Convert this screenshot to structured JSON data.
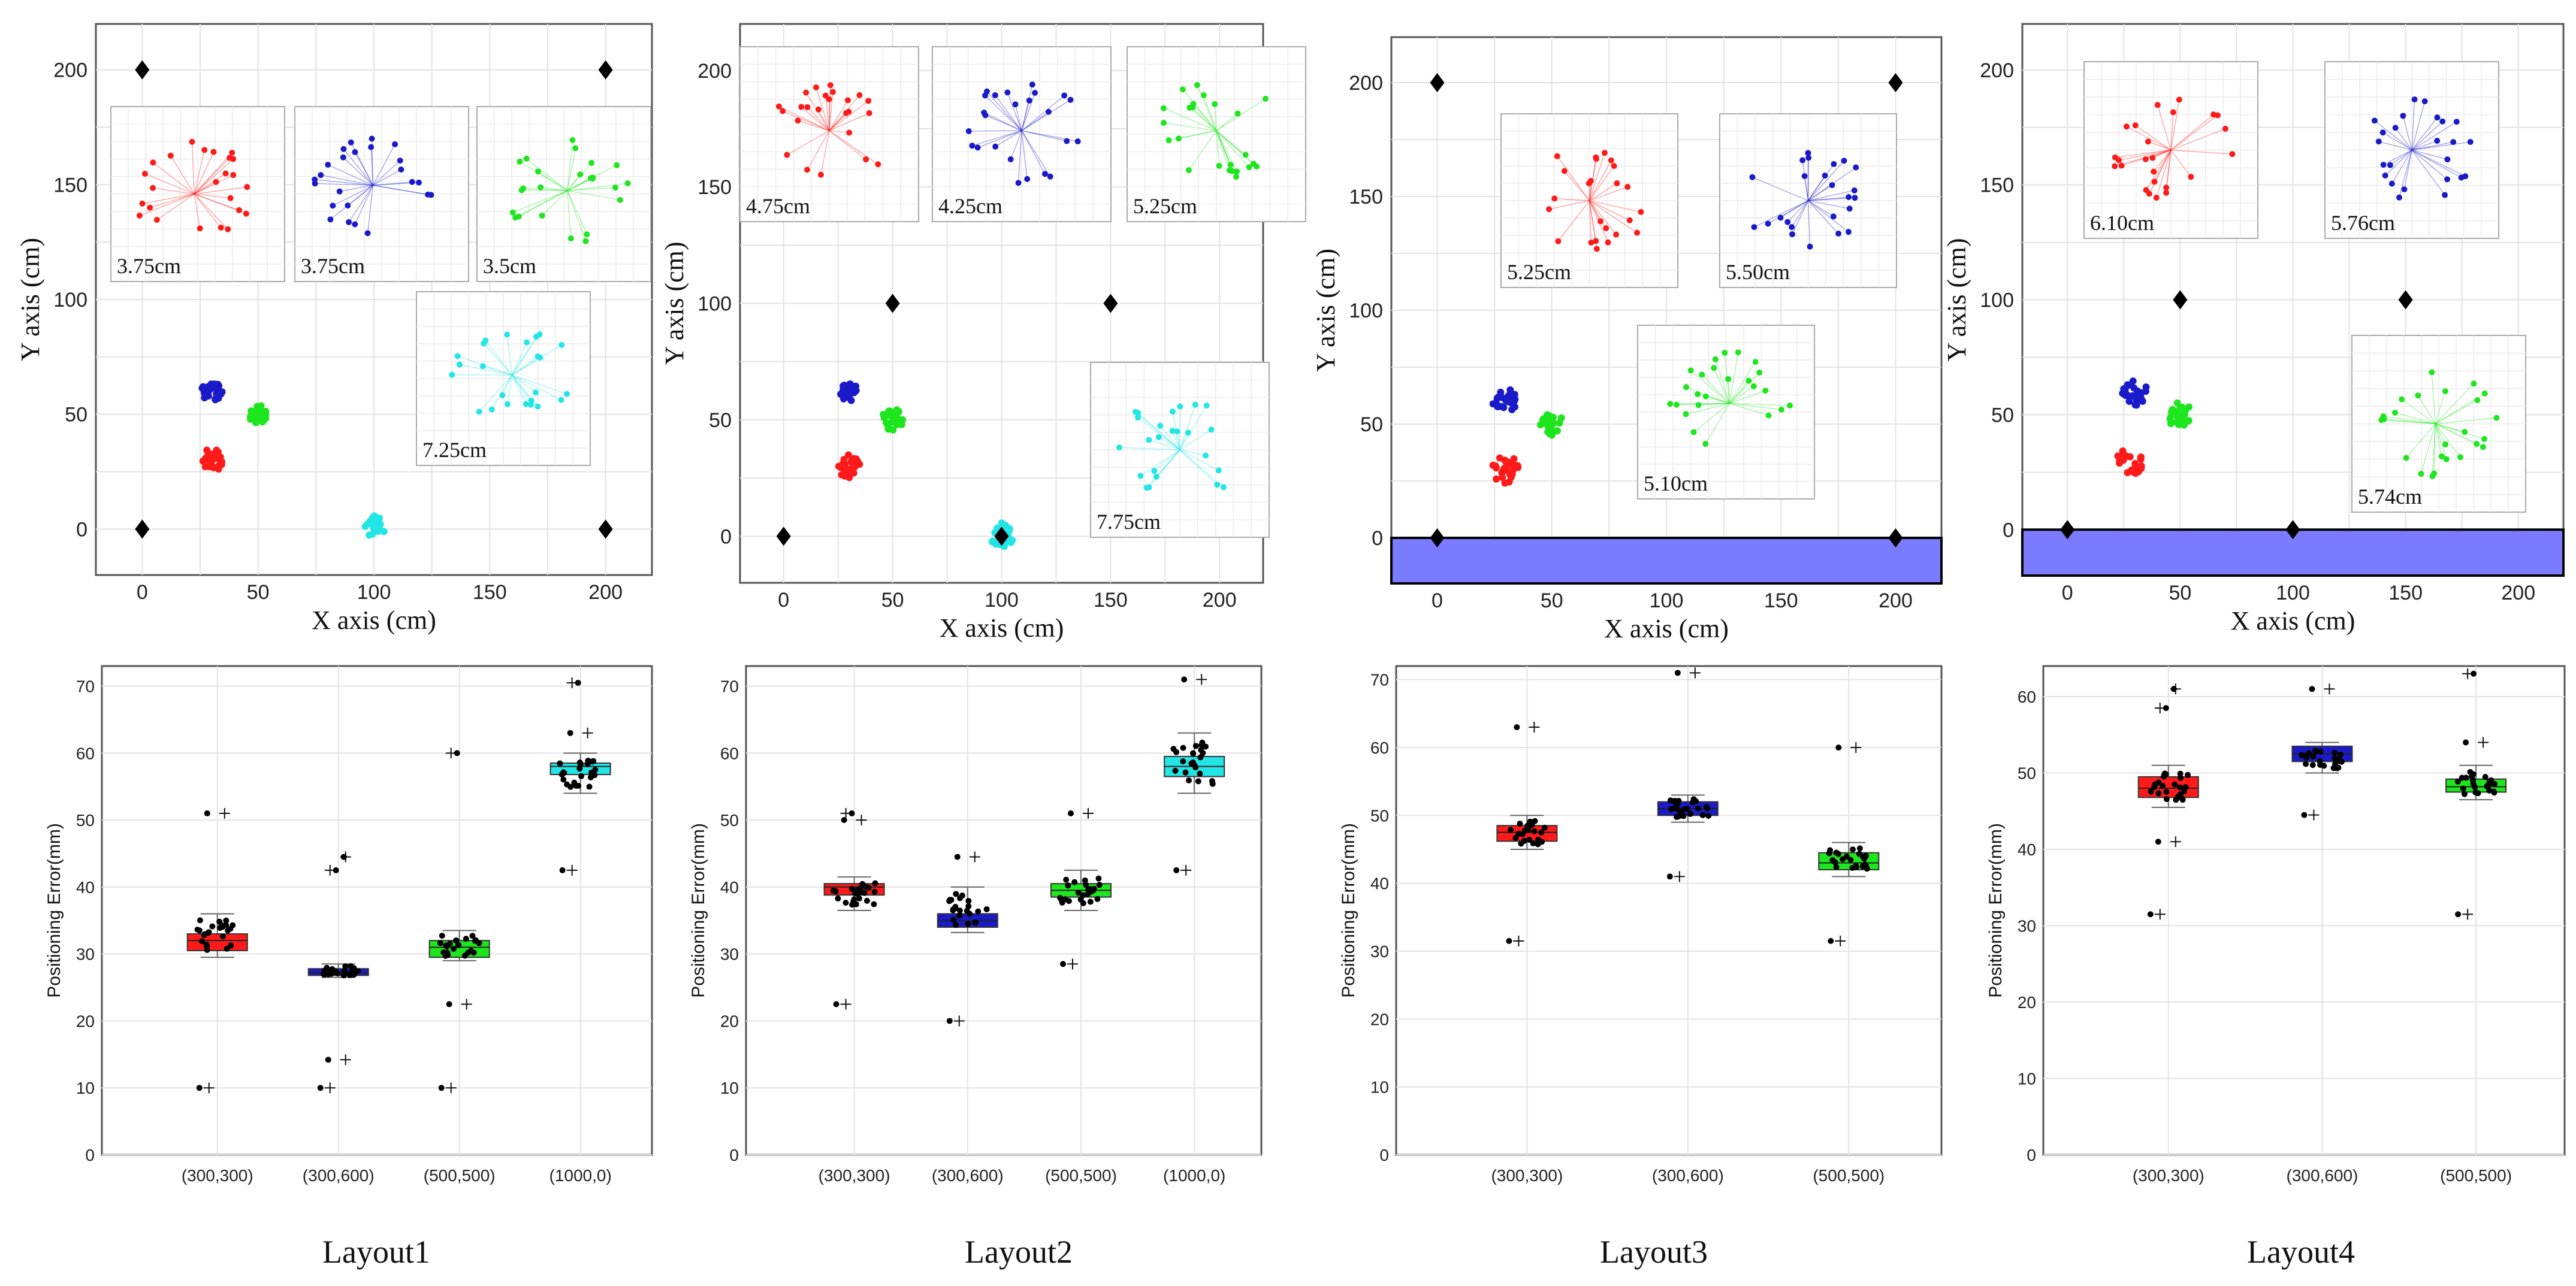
{
  "chart_data": [
    {
      "type": "scatter",
      "title": "Layout1",
      "xlabel": "X axis (cm)",
      "ylabel": "Y axis (cm)",
      "xlim": [
        -20,
        220
      ],
      "ylim": [
        -20,
        220
      ],
      "xticks": [
        "0",
        "50",
        "100",
        "150",
        "200"
      ],
      "yticks": [
        "0",
        "50",
        "100",
        "150",
        "200"
      ],
      "anchors": [
        [
          0,
          0
        ],
        [
          0,
          200
        ],
        [
          200,
          0
        ],
        [
          200,
          200
        ]
      ],
      "clusters": [
        {
          "name": "(300,300)",
          "color": "#ff1a1a",
          "center": [
            30,
            30
          ],
          "spread": 5
        },
        {
          "name": "(300,600)",
          "color": "#1a1ac8",
          "center": [
            30,
            61
          ],
          "spread": 5
        },
        {
          "name": "(500,500)",
          "color": "#1ee61e",
          "center": [
            50,
            50
          ],
          "spread": 4
        },
        {
          "name": "(1000,0)",
          "color": "#22e6e6",
          "center": [
            100,
            1
          ],
          "spread": 5
        }
      ],
      "obstacle": null,
      "insets": [
        {
          "label": "3.75cm",
          "color": "#ff1a1a"
        },
        {
          "label": "3.75cm",
          "color": "#1a1ac8"
        },
        {
          "label": "3.5cm",
          "color": "#1ee61e"
        },
        {
          "label": "7.25cm",
          "color": "#22e6e6"
        }
      ]
    },
    {
      "type": "scatter",
      "title": "Layout2",
      "xlabel": "X axis (cm)",
      "ylabel": "Y axis (cm)",
      "xlim": [
        -20,
        220
      ],
      "ylim": [
        -20,
        220
      ],
      "xticks": [
        "0",
        "50",
        "100",
        "150",
        "200"
      ],
      "yticks": [
        "0",
        "50",
        "100",
        "150",
        "200"
      ],
      "anchors": [
        [
          0,
          0
        ],
        [
          50,
          100
        ],
        [
          100,
          0
        ],
        [
          150,
          100
        ]
      ],
      "clusters": [
        {
          "name": "(300,300)",
          "color": "#ff1a1a",
          "center": [
            30,
            30
          ],
          "spread": 5
        },
        {
          "name": "(300,600)",
          "color": "#1a1ac8",
          "center": [
            30,
            62
          ],
          "spread": 4
        },
        {
          "name": "(500,500)",
          "color": "#1ee61e",
          "center": [
            50,
            50
          ],
          "spread": 5
        },
        {
          "name": "(1000,0)",
          "color": "#22e6e6",
          "center": [
            100,
            1
          ],
          "spread": 6
        }
      ],
      "obstacle": null,
      "insets": [
        {
          "label": "4.75cm",
          "color": "#ff1a1a"
        },
        {
          "label": "4.25cm",
          "color": "#1a1ac8"
        },
        {
          "label": "5.25cm",
          "color": "#1ee61e"
        },
        {
          "label": "7.75cm",
          "color": "#22e6e6"
        }
      ]
    },
    {
      "type": "scatter",
      "title": "Layout3",
      "xlabel": "X axis (cm)",
      "ylabel": "Y axis (cm)",
      "xlim": [
        -20,
        220
      ],
      "ylim": [
        -20,
        220
      ],
      "xticks": [
        "0",
        "50",
        "100",
        "150",
        "200"
      ],
      "yticks": [
        "0",
        "50",
        "100",
        "150",
        "200"
      ],
      "anchors": [
        [
          0,
          0
        ],
        [
          0,
          200
        ],
        [
          200,
          0
        ],
        [
          200,
          200
        ]
      ],
      "clusters": [
        {
          "name": "(300,300)",
          "color": "#ff1a1a",
          "center": [
            30,
            30
          ],
          "spread": 6
        },
        {
          "name": "(300,600)",
          "color": "#1a1ac8",
          "center": [
            30,
            60
          ],
          "spread": 6
        },
        {
          "name": "(500,500)",
          "color": "#1ee61e",
          "center": [
            50,
            50
          ],
          "spread": 5
        }
      ],
      "obstacle": {
        "y0": -20,
        "y1": 0,
        "color": "#7b7bff"
      },
      "insets": [
        {
          "label": "5.25cm",
          "color": "#ff1a1a"
        },
        {
          "label": "5.50cm",
          "color": "#1a1ac8"
        },
        {
          "label": "5.10cm",
          "color": "#1ee61e"
        }
      ]
    },
    {
      "type": "scatter",
      "title": "Layout4",
      "xlabel": "X axis (cm)",
      "ylabel": "Y axis (cm)",
      "xlim": [
        -20,
        220
      ],
      "ylim": [
        -20,
        220
      ],
      "xticks": [
        "0",
        "50",
        "100",
        "150",
        "200"
      ],
      "yticks": [
        "0",
        "50",
        "100",
        "150",
        "200"
      ],
      "anchors": [
        [
          0,
          0
        ],
        [
          50,
          100
        ],
        [
          100,
          0
        ],
        [
          150,
          100
        ]
      ],
      "clusters": [
        {
          "name": "(300,300)",
          "color": "#ff1a1a",
          "center": [
            28,
            30
          ],
          "spread": 6
        },
        {
          "name": "(300,600)",
          "color": "#1a1ac8",
          "center": [
            30,
            60
          ],
          "spread": 6
        },
        {
          "name": "(500,500)",
          "color": "#1ee61e",
          "center": [
            50,
            50
          ],
          "spread": 6
        }
      ],
      "obstacle": {
        "y0": -20,
        "y1": 0,
        "color": "#7b7bff"
      },
      "insets": [
        {
          "label": "6.10cm",
          "color": "#ff1a1a"
        },
        {
          "label": "5.76cm",
          "color": "#1a1ac8"
        },
        {
          "label": "5.74cm",
          "color": "#1ee61e"
        }
      ]
    },
    {
      "type": "box",
      "title": "Layout1",
      "ylabel": "Positioning Error(mm)",
      "ylim": [
        0,
        73
      ],
      "yticks": [
        0,
        10,
        20,
        30,
        40,
        50,
        60,
        70
      ],
      "categories": [
        "(300,300)",
        "(300,600)",
        "(500,500)",
        "(1000,0)"
      ],
      "colors": [
        "#ff1a1a",
        "#1a1ac8",
        "#1ee61e",
        "#22e6e6"
      ],
      "boxes": [
        {
          "q1": 30.5,
          "median": 32,
          "q3": 33,
          "wlo": 29.5,
          "whi": 36,
          "outliers": [
            10,
            51
          ]
        },
        {
          "q1": 26.8,
          "median": 27.2,
          "q3": 27.8,
          "wlo": 26.5,
          "whi": 28.5,
          "outliers": [
            10,
            14.2,
            42.5,
            44.5
          ]
        },
        {
          "q1": 29.5,
          "median": 31,
          "q3": 32,
          "wlo": 29,
          "whi": 33.5,
          "outliers": [
            10,
            22.5,
            60
          ]
        },
        {
          "q1": 56.8,
          "median": 58,
          "q3": 58.5,
          "wlo": 54,
          "whi": 60,
          "outliers": [
            42.5,
            63,
            70.5
          ]
        }
      ]
    },
    {
      "type": "box",
      "title": "Layout2",
      "ylabel": "Positioning Error(mm)",
      "ylim": [
        0,
        73
      ],
      "yticks": [
        0,
        10,
        20,
        30,
        40,
        50,
        60,
        70
      ],
      "categories": [
        "(300,300)",
        "(300,600)",
        "(500,500)",
        "(1000,0)"
      ],
      "colors": [
        "#ff1a1a",
        "#1a1ac8",
        "#1ee61e",
        "#22e6e6"
      ],
      "boxes": [
        {
          "q1": 38.8,
          "median": 40,
          "q3": 40.5,
          "wlo": 36.5,
          "whi": 41.5,
          "outliers": [
            22.5,
            50,
            51
          ]
        },
        {
          "q1": 34,
          "median": 35,
          "q3": 36,
          "wlo": 33.2,
          "whi": 40,
          "outliers": [
            20,
            44.5
          ]
        },
        {
          "q1": 38.5,
          "median": 39.5,
          "q3": 40.5,
          "wlo": 36.5,
          "whi": 42.5,
          "outliers": [
            28.5,
            51
          ]
        },
        {
          "q1": 56.5,
          "median": 58,
          "q3": 59.5,
          "wlo": 54,
          "whi": 63,
          "outliers": [
            42.5,
            71
          ]
        }
      ]
    },
    {
      "type": "box",
      "title": "Layout3",
      "ylabel": "Positioning Error(mm)",
      "ylim": [
        0,
        72
      ],
      "yticks": [
        0,
        10,
        20,
        30,
        40,
        50,
        60,
        70
      ],
      "categories": [
        "(300,300)",
        "(300,600)",
        "(500,500)"
      ],
      "colors": [
        "#ff1a1a",
        "#1a1ac8",
        "#1ee61e"
      ],
      "boxes": [
        {
          "q1": 46.2,
          "median": 47.5,
          "q3": 48.5,
          "wlo": 45,
          "whi": 50,
          "outliers": [
            31.5,
            63
          ]
        },
        {
          "q1": 50,
          "median": 51,
          "q3": 52,
          "wlo": 49,
          "whi": 53,
          "outliers": [
            41,
            71
          ]
        },
        {
          "q1": 42,
          "median": 43,
          "q3": 44.5,
          "wlo": 41,
          "whi": 46,
          "outliers": [
            31.5,
            60
          ]
        }
      ]
    },
    {
      "type": "box",
      "title": "Layout4",
      "ylabel": "Positioning Error(mm)",
      "ylim": [
        0,
        64
      ],
      "yticks": [
        0,
        10,
        20,
        30,
        40,
        50,
        60
      ],
      "categories": [
        "(300,300)",
        "(300,600)",
        "(500,500)"
      ],
      "colors": [
        "#ff1a1a",
        "#1a1ac8",
        "#1ee61e"
      ],
      "boxes": [
        {
          "q1": 46.8,
          "median": 48,
          "q3": 49.5,
          "wlo": 45.5,
          "whi": 51,
          "outliers": [
            31.5,
            41,
            58.5,
            61
          ]
        },
        {
          "q1": 51.5,
          "median": 52.5,
          "q3": 53.5,
          "wlo": 50,
          "whi": 54,
          "outliers": [
            44.5,
            61
          ]
        },
        {
          "q1": 47.5,
          "median": 48.2,
          "q3": 49.2,
          "wlo": 46.5,
          "whi": 51,
          "outliers": [
            31.5,
            54,
            63
          ]
        }
      ]
    }
  ],
  "captions": [
    "Layout1",
    "Layout2",
    "Layout3",
    "Layout4"
  ]
}
